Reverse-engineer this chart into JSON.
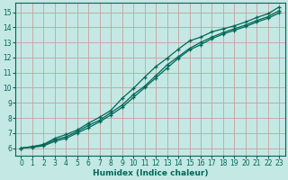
{
  "xlabel": "Humidex (Indice chaleur)",
  "ylabel": "",
  "bg_color": "#c4e8e4",
  "grid_color": "#c8a0a0",
  "line_color": "#006858",
  "xlim": [
    -0.5,
    23.5
  ],
  "ylim": [
    5.5,
    15.6
  ],
  "xticks": [
    0,
    1,
    2,
    3,
    4,
    5,
    6,
    7,
    8,
    9,
    10,
    11,
    12,
    13,
    14,
    15,
    16,
    17,
    18,
    19,
    20,
    21,
    22,
    23
  ],
  "yticks": [
    6,
    7,
    8,
    9,
    10,
    11,
    12,
    13,
    14,
    15
  ],
  "line1_x": [
    0,
    1,
    2,
    3,
    4,
    5,
    6,
    7,
    8,
    9,
    10,
    11,
    12,
    13,
    14,
    15,
    16,
    17,
    18,
    19,
    20,
    21,
    22,
    23
  ],
  "line1_y": [
    6.0,
    6.1,
    6.2,
    6.55,
    6.75,
    7.1,
    7.5,
    7.85,
    8.35,
    8.85,
    9.55,
    10.1,
    10.8,
    11.5,
    12.05,
    12.6,
    13.0,
    13.35,
    13.65,
    13.9,
    14.15,
    14.45,
    14.7,
    15.1
  ],
  "line2_x": [
    0,
    1,
    2,
    3,
    4,
    5,
    6,
    7,
    8,
    9,
    10,
    11,
    12,
    13,
    14,
    15,
    16,
    17,
    18,
    19,
    20,
    21,
    22,
    23
  ],
  "line2_y": [
    6.0,
    6.1,
    6.25,
    6.65,
    6.9,
    7.2,
    7.65,
    8.05,
    8.5,
    9.3,
    9.95,
    10.7,
    11.4,
    11.95,
    12.55,
    13.1,
    13.35,
    13.7,
    13.9,
    14.1,
    14.35,
    14.65,
    14.9,
    15.35
  ],
  "line3_x": [
    0,
    1,
    2,
    3,
    4,
    5,
    6,
    7,
    8,
    9,
    10,
    11,
    12,
    13,
    14,
    15,
    16,
    17,
    18,
    19,
    20,
    21,
    22,
    23
  ],
  "line3_y": [
    6.0,
    6.05,
    6.15,
    6.45,
    6.65,
    7.0,
    7.35,
    7.75,
    8.2,
    8.7,
    9.35,
    10.0,
    10.65,
    11.3,
    11.95,
    12.5,
    12.85,
    13.25,
    13.55,
    13.8,
    14.05,
    14.35,
    14.6,
    14.95
  ]
}
